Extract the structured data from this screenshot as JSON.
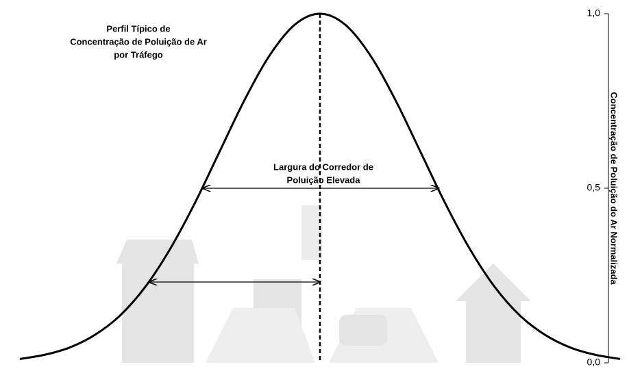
{
  "chart_data": {
    "type": "line",
    "title": [
      "Perfil Típico de",
      "Concentração de Poluição de Ar",
      "por Tráfego"
    ],
    "annotation": [
      "Largura do Corredor de",
      "Poluição Elevada"
    ],
    "y_label": "Concentração de Poluição do Ar Normalizada",
    "x": [
      -3,
      -2.75,
      -2.5,
      -2.25,
      -2,
      -1.75,
      -1.5,
      -1.25,
      -1,
      -0.75,
      -0.5,
      -0.25,
      0,
      0.25,
      0.5,
      0.75,
      1,
      1.25,
      1.5,
      1.75,
      2,
      2.25,
      2.5,
      2.75,
      3
    ],
    "values": [
      0.011,
      0.023,
      0.044,
      0.08,
      0.135,
      0.216,
      0.325,
      0.458,
      0.607,
      0.755,
      0.882,
      0.969,
      1,
      0.969,
      0.882,
      0.755,
      0.607,
      0.458,
      0.325,
      0.216,
      0.135,
      0.08,
      0.044,
      0.023,
      0.011
    ],
    "color": "#000000",
    "xlim": [
      -3.13,
      3
    ],
    "ylim": [
      0,
      1
    ],
    "yticks": [
      {
        "value": 0,
        "label": "0,0"
      },
      {
        "value": 0.5,
        "label": "0,5"
      },
      {
        "value": 1,
        "label": "1,0"
      }
    ]
  }
}
